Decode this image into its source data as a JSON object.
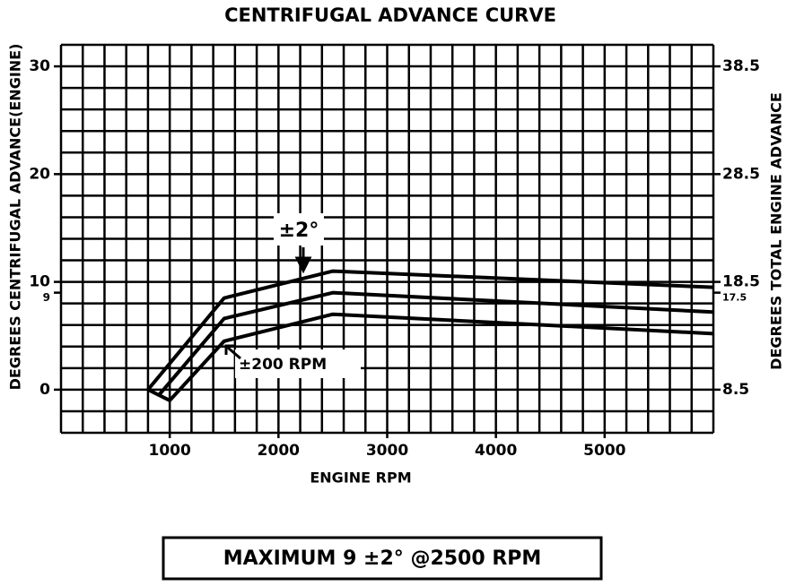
{
  "chart_data": {
    "type": "line",
    "title": "CENTRIFUGAL ADVANCE CURVE",
    "x_label": "ENGINE RPM",
    "y_label": "DEGREES CENTRIFUGAL ADVANCE(ENGINE)",
    "y2_label": "DEGREES TOTAL ENGINE ADVANCE",
    "xlim": [
      0,
      6000
    ],
    "ylim": [
      -4,
      32
    ],
    "y2lim": [
      4.5,
      40.5
    ],
    "xticks": [
      1000,
      2000,
      3000,
      4000,
      5000
    ],
    "yticks": [
      0,
      9,
      10,
      20,
      30
    ],
    "y2ticks": [
      8.5,
      17.5,
      18.5,
      28.5,
      38.5
    ],
    "x_grid": [
      0,
      200,
      400,
      600,
      800,
      1000,
      1200,
      1400,
      1600,
      1800,
      2000,
      2200,
      2400,
      2600,
      2800,
      3000,
      3200,
      3400,
      3600,
      3800,
      4000,
      4200,
      4400,
      4600,
      4800,
      5000,
      5200,
      5400,
      5600,
      5800,
      6000
    ],
    "y_grid": [
      -4,
      -2,
      0,
      2,
      4,
      6,
      8,
      10,
      12,
      14,
      16,
      18,
      20,
      22,
      24,
      26,
      28,
      30,
      32
    ],
    "grid": true,
    "series": [
      {
        "color": "#000000",
        "x": [
          800,
          1500,
          2500,
          6000
        ],
        "values": [
          0,
          8.5,
          11,
          9.5
        ]
      },
      {
        "color": "#000000",
        "x": [
          900,
          1500,
          2500,
          6000
        ],
        "values": [
          -0.5,
          6.6,
          9,
          7.2
        ]
      },
      {
        "color": "#000000",
        "x": [
          800,
          1000,
          1500,
          2500,
          6000
        ],
        "values": [
          0,
          -1,
          4.5,
          7,
          5.2
        ]
      }
    ],
    "annotations": [
      "±2°",
      "±200 RPM"
    ],
    "footer": "MAXIMUM 9 ±2° @2500 RPM"
  }
}
